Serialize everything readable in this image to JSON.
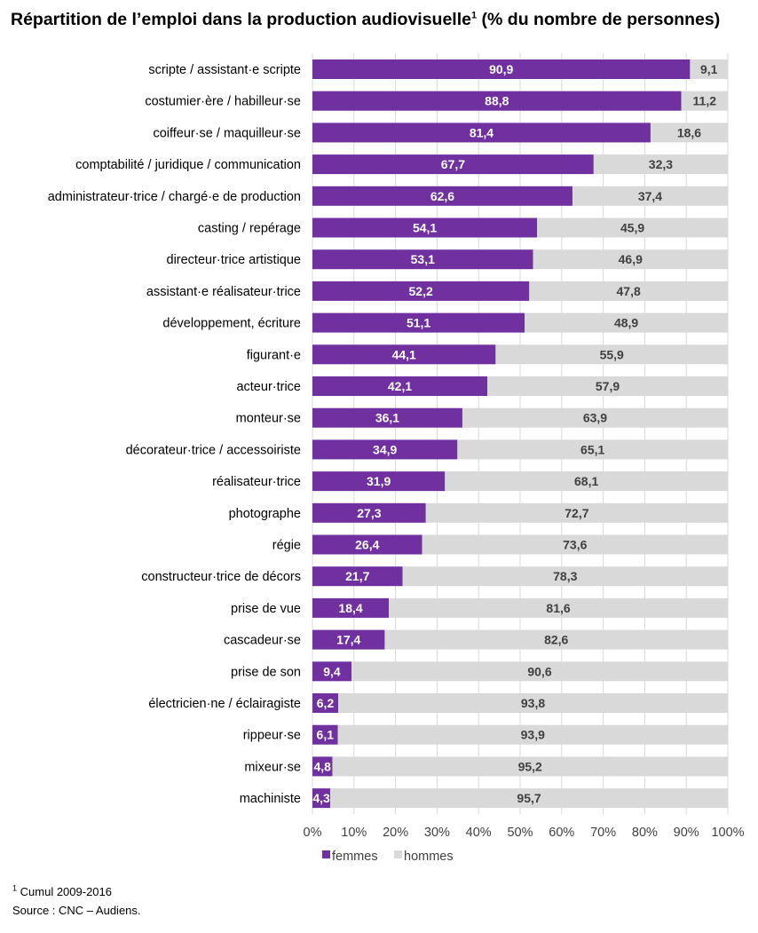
{
  "chart_data": {
    "type": "bar",
    "orientation": "horizontal",
    "stacked": true,
    "title": "Répartition de l’emploi dans la production audiovisuelle",
    "title_sup": "1",
    "title_suffix": "(% du nombre de personnes)",
    "categories": [
      "scripte / assistant·e scripte",
      "costumier·ère / habilleur·se",
      "coiffeur·se / maquilleur·se",
      "comptabilité / juridique / communication",
      "administrateur·trice / chargé·e de production",
      "casting / repérage",
      "directeur·trice artistique",
      "assistant·e réalisateur·trice",
      "développement, écriture",
      "figurant·e",
      "acteur·trice",
      "monteur·se",
      "décorateur·trice / accessoiriste",
      "réalisateur·trice",
      "photographe",
      "régie",
      "constructeur·trice de décors",
      "prise de vue",
      "cascadeur·se",
      "prise de son",
      "électricien·ne / éclairagiste",
      "rippeur·se",
      "mixeur·se",
      "machiniste"
    ],
    "series": [
      {
        "name": "femmes",
        "color": "#7030a0",
        "values": [
          90.9,
          88.8,
          81.4,
          67.7,
          62.6,
          54.1,
          53.1,
          52.2,
          51.1,
          44.1,
          42.1,
          36.1,
          34.9,
          31.9,
          27.3,
          26.4,
          21.7,
          18.4,
          17.4,
          9.4,
          6.2,
          6.1,
          4.8,
          4.3
        ],
        "labels": [
          "90,9",
          "88,8",
          "81,4",
          "67,7",
          "62,6",
          "54,1",
          "53,1",
          "52,2",
          "51,1",
          "44,1",
          "42,1",
          "36,1",
          "34,9",
          "31,9",
          "27,3",
          "26,4",
          "21,7",
          "18,4",
          "17,4",
          "9,4",
          "6,2",
          "6,1",
          "4,8",
          "4,3"
        ]
      },
      {
        "name": "hommes",
        "color": "#d9d9d9",
        "values": [
          9.1,
          11.2,
          18.6,
          32.3,
          37.4,
          45.9,
          46.9,
          47.8,
          48.9,
          55.9,
          57.9,
          63.9,
          65.1,
          68.1,
          72.7,
          73.6,
          78.3,
          81.6,
          82.6,
          90.6,
          93.8,
          93.9,
          95.2,
          95.7
        ],
        "labels": [
          "9,1",
          "11,2",
          "18,6",
          "32,3",
          "37,4",
          "45,9",
          "46,9",
          "47,8",
          "48,9",
          "55,9",
          "57,9",
          "63,9",
          "65,1",
          "68,1",
          "72,7",
          "73,6",
          "78,3",
          "81,6",
          "82,6",
          "90,6",
          "93,8",
          "93,9",
          "95,2",
          "95,7"
        ]
      }
    ],
    "xlim": [
      0,
      100
    ],
    "xticks": [
      0,
      10,
      20,
      30,
      40,
      50,
      60,
      70,
      80,
      90,
      100
    ],
    "xtick_labels": [
      "0%",
      "10%",
      "20%",
      "30%",
      "40%",
      "50%",
      "60%",
      "70%",
      "80%",
      "90%",
      "100%"
    ],
    "xlabel": "",
    "ylabel": "",
    "grid": true,
    "legend": "bottom"
  },
  "footnotes": {
    "note_sup": "1",
    "note_text": "Cumul 2009-2016",
    "source": "Source : CNC – Audiens."
  }
}
